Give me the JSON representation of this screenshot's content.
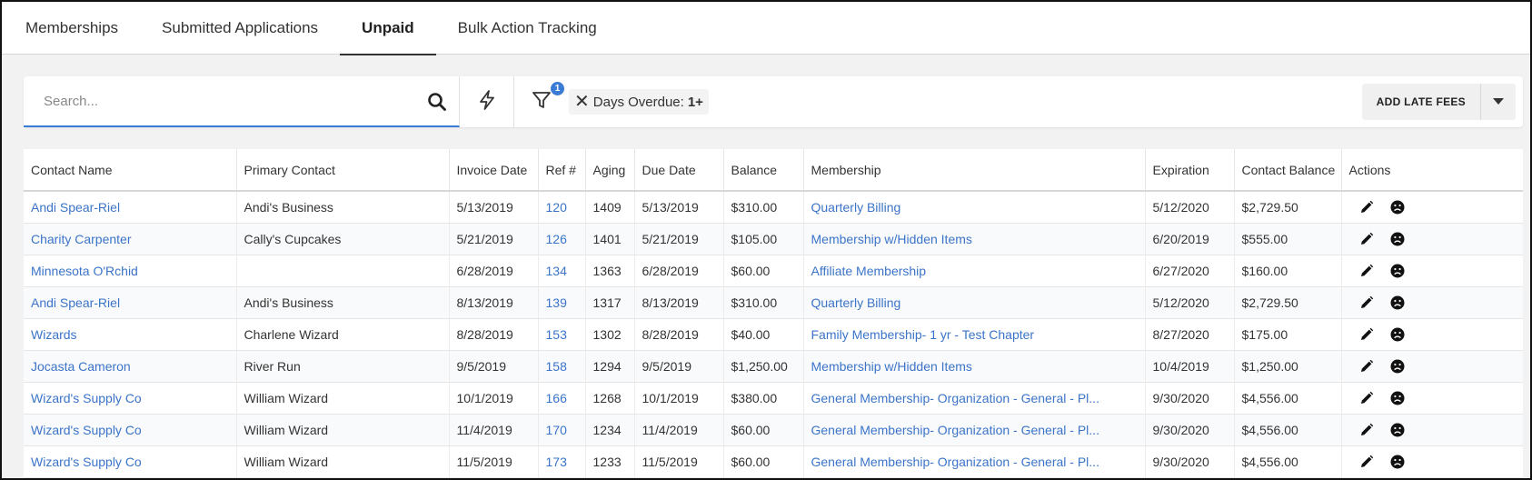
{
  "tabs": [
    {
      "label": "Memberships"
    },
    {
      "label": "Submitted Applications"
    },
    {
      "label": "Unpaid"
    },
    {
      "label": "Bulk Action Tracking"
    }
  ],
  "toolbar": {
    "search_placeholder": "Search...",
    "filter_badge": "1",
    "chip_label": "Days Overdue:",
    "chip_value": "1+",
    "late_fees_label": "ADD LATE FEES"
  },
  "table": {
    "columns": [
      "Contact Name",
      "Primary Contact",
      "Invoice Date",
      "Ref #",
      "Aging",
      "Due Date",
      "Balance",
      "Membership",
      "Expiration",
      "Contact Balance",
      "Actions"
    ],
    "rows": [
      {
        "contact": "Andi Spear-Riel",
        "primary": "Andi's Business",
        "invoice_date": "5/13/2019",
        "ref": "120",
        "aging": "1409",
        "due_date": "5/13/2019",
        "balance": "$310.00",
        "membership": "Quarterly Billing",
        "expiration": "5/12/2020",
        "contact_balance": "$2,729.50"
      },
      {
        "contact": "Charity Carpenter",
        "primary": "Cally's Cupcakes",
        "invoice_date": "5/21/2019",
        "ref": "126",
        "aging": "1401",
        "due_date": "5/21/2019",
        "balance": "$105.00",
        "membership": "Membership w/Hidden Items",
        "expiration": "6/20/2019",
        "contact_balance": "$555.00"
      },
      {
        "contact": "Minnesota O'Rchid",
        "primary": "",
        "invoice_date": "6/28/2019",
        "ref": "134",
        "aging": "1363",
        "due_date": "6/28/2019",
        "balance": "$60.00",
        "membership": "Affiliate Membership",
        "expiration": "6/27/2020",
        "contact_balance": "$160.00"
      },
      {
        "contact": "Andi Spear-Riel",
        "primary": "Andi's Business",
        "invoice_date": "8/13/2019",
        "ref": "139",
        "aging": "1317",
        "due_date": "8/13/2019",
        "balance": "$310.00",
        "membership": "Quarterly Billing",
        "expiration": "5/12/2020",
        "contact_balance": "$2,729.50"
      },
      {
        "contact": "Wizards",
        "primary": "Charlene Wizard",
        "invoice_date": "8/28/2019",
        "ref": "153",
        "aging": "1302",
        "due_date": "8/28/2019",
        "balance": "$40.00",
        "membership": "Family Membership- 1 yr - Test Chapter",
        "expiration": "8/27/2020",
        "contact_balance": "$175.00"
      },
      {
        "contact": "Jocasta Cameron",
        "primary": "River Run",
        "invoice_date": "9/5/2019",
        "ref": "158",
        "aging": "1294",
        "due_date": "9/5/2019",
        "balance": "$1,250.00",
        "membership": "Membership w/Hidden Items",
        "expiration": "10/4/2019",
        "contact_balance": "$1,250.00"
      },
      {
        "contact": "Wizard's Supply Co",
        "primary": "William Wizard",
        "invoice_date": "10/1/2019",
        "ref": "166",
        "aging": "1268",
        "due_date": "10/1/2019",
        "balance": "$380.00",
        "membership": "General Membership- Organization - General - Pl...",
        "expiration": "9/30/2020",
        "contact_balance": "$4,556.00"
      },
      {
        "contact": "Wizard's Supply Co",
        "primary": "William Wizard",
        "invoice_date": "11/4/2019",
        "ref": "170",
        "aging": "1234",
        "due_date": "11/4/2019",
        "balance": "$60.00",
        "membership": "General Membership- Organization - General - Pl...",
        "expiration": "9/30/2020",
        "contact_balance": "$4,556.00"
      },
      {
        "contact": "Wizard's Supply Co",
        "primary": "William Wizard",
        "invoice_date": "11/5/2019",
        "ref": "173",
        "aging": "1233",
        "due_date": "11/5/2019",
        "balance": "$60.00",
        "membership": "General Membership- Organization - General - Pl...",
        "expiration": "9/30/2020",
        "contact_balance": "$4,556.00"
      }
    ]
  },
  "icons": {
    "search": "search-icon",
    "bolt": "lightning-bolt-icon",
    "filter": "filter-icon",
    "remove": "close-icon",
    "caret": "caret-down-icon",
    "edit": "pencil-icon",
    "frown": "frown-face-icon"
  },
  "colors": {
    "accent": "#3a7bd5",
    "link": "#3b74c9"
  }
}
